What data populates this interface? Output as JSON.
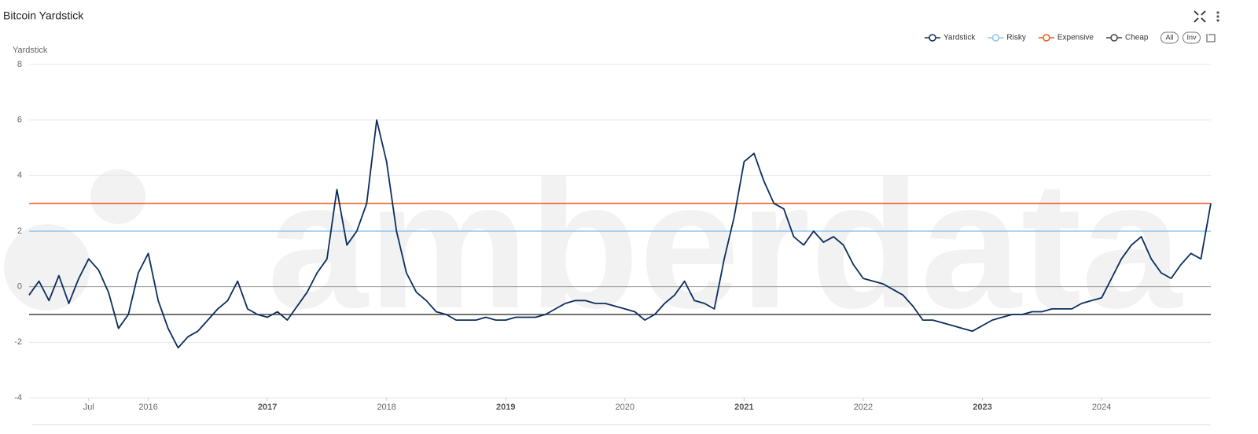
{
  "chart_data": {
    "type": "line",
    "title": "Bitcoin Yardstick",
    "y_label": "Yardstick",
    "watermark": "amberdata",
    "controls": [
      "All",
      "Inv"
    ],
    "x": [
      "2015-01",
      "2015-02",
      "2015-03",
      "2015-04",
      "2015-05",
      "2015-06",
      "2015-07",
      "2015-08",
      "2015-09",
      "2015-10",
      "2015-11",
      "2015-12",
      "2016-01",
      "2016-02",
      "2016-03",
      "2016-04",
      "2016-05",
      "2016-06",
      "2016-07",
      "2016-08",
      "2016-09",
      "2016-10",
      "2016-11",
      "2016-12",
      "2017-01",
      "2017-02",
      "2017-03",
      "2017-04",
      "2017-05",
      "2017-06",
      "2017-07",
      "2017-08",
      "2017-09",
      "2017-10",
      "2017-11",
      "2017-12",
      "2018-01",
      "2018-02",
      "2018-03",
      "2018-04",
      "2018-05",
      "2018-06",
      "2018-07",
      "2018-08",
      "2018-09",
      "2018-10",
      "2018-11",
      "2018-12",
      "2019-01",
      "2019-02",
      "2019-03",
      "2019-04",
      "2019-05",
      "2019-06",
      "2019-07",
      "2019-08",
      "2019-09",
      "2019-10",
      "2019-11",
      "2019-12",
      "2020-01",
      "2020-02",
      "2020-03",
      "2020-04",
      "2020-05",
      "2020-06",
      "2020-07",
      "2020-08",
      "2020-09",
      "2020-10",
      "2020-11",
      "2020-12",
      "2021-01",
      "2021-02",
      "2021-03",
      "2021-04",
      "2021-05",
      "2021-06",
      "2021-07",
      "2021-08",
      "2021-09",
      "2021-10",
      "2021-11",
      "2021-12",
      "2022-01",
      "2022-02",
      "2022-03",
      "2022-04",
      "2022-05",
      "2022-06",
      "2022-07",
      "2022-08",
      "2022-09",
      "2022-10",
      "2022-11",
      "2022-12",
      "2023-01",
      "2023-02",
      "2023-03",
      "2023-04",
      "2023-05",
      "2023-06",
      "2023-07",
      "2023-08",
      "2023-09",
      "2023-10",
      "2023-11",
      "2023-12",
      "2024-01",
      "2024-02",
      "2024-03",
      "2024-04",
      "2024-05",
      "2024-06",
      "2024-07",
      "2024-08",
      "2024-09",
      "2024-10",
      "2024-11",
      "2024-12"
    ],
    "series": [
      {
        "name": "Yardstick",
        "color": "#0b2d5e",
        "values": [
          -0.3,
          0.2,
          -0.5,
          0.4,
          -0.6,
          0.3,
          1.0,
          0.6,
          -0.2,
          -1.5,
          -1.0,
          0.5,
          1.2,
          -0.5,
          -1.5,
          -2.2,
          -1.8,
          -1.6,
          -1.2,
          -0.8,
          -0.5,
          0.2,
          -0.8,
          -1.0,
          -1.1,
          -0.9,
          -1.2,
          -0.7,
          -0.2,
          0.5,
          1.0,
          3.5,
          1.5,
          2.0,
          3.0,
          6.0,
          4.5,
          2.0,
          0.5,
          -0.2,
          -0.5,
          -0.9,
          -1.0,
          -1.2,
          -1.2,
          -1.2,
          -1.1,
          -1.2,
          -1.2,
          -1.1,
          -1.1,
          -1.1,
          -1.0,
          -0.8,
          -0.6,
          -0.5,
          -0.5,
          -0.6,
          -0.6,
          -0.7,
          -0.8,
          -0.9,
          -1.2,
          -1.0,
          -0.6,
          -0.3,
          0.2,
          -0.5,
          -0.6,
          -0.8,
          1.0,
          2.5,
          4.5,
          4.8,
          3.8,
          3.0,
          2.8,
          1.8,
          1.5,
          2.0,
          1.6,
          1.8,
          1.5,
          0.8,
          0.3,
          0.2,
          0.1,
          -0.1,
          -0.3,
          -0.7,
          -1.2,
          -1.2,
          -1.3,
          -1.4,
          -1.5,
          -1.6,
          -1.4,
          -1.2,
          -1.1,
          -1.0,
          -1.0,
          -0.9,
          -0.9,
          -0.8,
          -0.8,
          -0.8,
          -0.6,
          -0.5,
          -0.4,
          0.3,
          1.0,
          1.5,
          1.8,
          1.0,
          0.5,
          0.3,
          0.8,
          1.2,
          1.0,
          3.0
        ]
      }
    ],
    "reference_lines": [
      {
        "name": "Risky",
        "color": "#8ec5f2",
        "value": 2
      },
      {
        "name": "Expensive",
        "color": "#ee5a1e",
        "value": 3
      },
      {
        "name": "Cheap",
        "color": "#444444",
        "value": -1
      }
    ],
    "xlim": [
      "2015-01",
      "2024-12"
    ],
    "xticks": [
      {
        "value": "2015-07",
        "label": "Jul"
      },
      {
        "value": "2016-01",
        "label": "2016"
      },
      {
        "value": "2017-01",
        "label": "2017"
      },
      {
        "value": "2018-01",
        "label": "2018"
      },
      {
        "value": "2019-01",
        "label": "2019"
      },
      {
        "value": "2020-01",
        "label": "2020"
      },
      {
        "value": "2021-01",
        "label": "2021"
      },
      {
        "value": "2022-01",
        "label": "2022"
      },
      {
        "value": "2023-01",
        "label": "2023"
      },
      {
        "value": "2024-01",
        "label": "2024"
      }
    ],
    "ylim": [
      -4,
      8
    ],
    "yticks": [
      -4,
      -2,
      0,
      2,
      4,
      6,
      8
    ],
    "grid": true
  }
}
